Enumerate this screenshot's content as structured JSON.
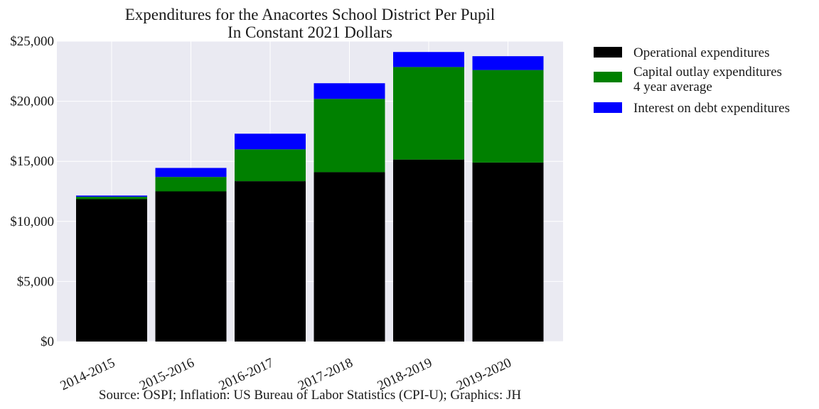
{
  "chart_data": {
    "type": "bar",
    "stacked": true,
    "title": "Expenditures for the Anacortes School District Per Pupil",
    "subtitle": "In Constant 2021 Dollars",
    "xlabel": "",
    "ylabel": "",
    "categories": [
      "2014-2015",
      "2015-2016",
      "2016-2017",
      "2017-2018",
      "2018-2019",
      "2019-2020"
    ],
    "ylim": [
      0,
      25000
    ],
    "yticks": [
      0,
      5000,
      10000,
      15000,
      20000,
      25000
    ],
    "ytick_labels": [
      "$0",
      "$5,000",
      "$10,000",
      "$15,000",
      "$20,000",
      "$25,000"
    ],
    "grid": true,
    "legend_position": "outside-top-right",
    "series": [
      {
        "name": "Operational expenditures",
        "color": "#000000",
        "values": [
          11850,
          12500,
          13350,
          14100,
          15150,
          14900
        ]
      },
      {
        "name_lines": [
          "Capital outlay expenditures",
          "4 year average"
        ],
        "color": "#008000",
        "values": [
          200,
          1200,
          2650,
          6100,
          7700,
          7700
        ]
      },
      {
        "name": "Interest on debt expenditures",
        "color": "#0000ff",
        "values": [
          100,
          750,
          1300,
          1300,
          1250,
          1150
        ]
      }
    ],
    "source_note": "Source: OSPI; Inflation: US Bureau of Labor Statistics (CPI-U); Graphics: JH"
  }
}
